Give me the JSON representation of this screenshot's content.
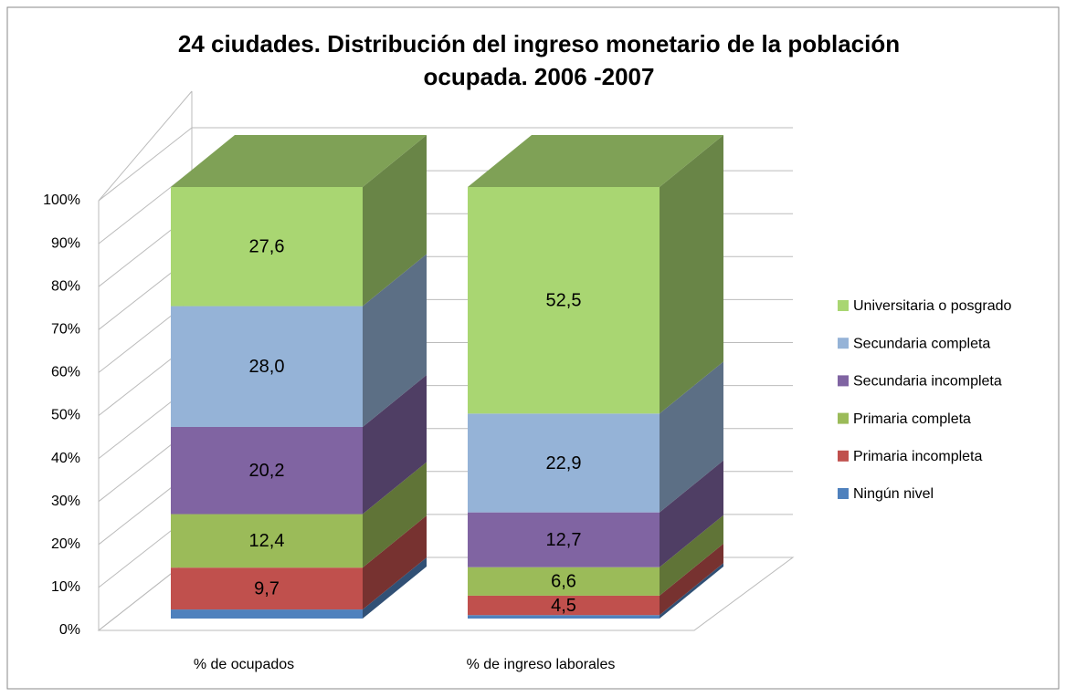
{
  "chart_data": {
    "type": "stacked-bar-3d",
    "title": "24 ciudades. Distribución del ingreso monetario de la población ocupada. 2006 -2007",
    "categories": [
      "% de ocupados",
      "% de ingreso laborales"
    ],
    "series": [
      {
        "name": "Ningún nivel",
        "color": "#4f81bd",
        "values": [
          2.1,
          0.8
        ]
      },
      {
        "name": "Primaria incompleta",
        "color": "#c0504d",
        "values": [
          9.7,
          4.5
        ],
        "value_labels": [
          "9,7",
          "4,5"
        ]
      },
      {
        "name": "Primaria completa",
        "color": "#9bbb59",
        "values": [
          12.4,
          6.6
        ],
        "value_labels": [
          "12,4",
          "6,6"
        ]
      },
      {
        "name": "Secundaria incompleta",
        "color": "#8064a2",
        "values": [
          20.2,
          12.7
        ],
        "value_labels": [
          "20,2",
          "12,7"
        ]
      },
      {
        "name": "Secundaria completa",
        "color": "#95b3d7",
        "values": [
          28.0,
          22.9
        ],
        "value_labels": [
          "28,0",
          "22,9"
        ]
      },
      {
        "name": "Universitaria o posgrado",
        "color": "#a9d672",
        "values": [
          27.6,
          52.5
        ],
        "value_labels": [
          "27,6",
          "52,5"
        ]
      }
    ],
    "ylim": [
      0,
      100
    ],
    "yticks": [
      {
        "value": 0,
        "label": "0%"
      },
      {
        "value": 10,
        "label": "10%"
      },
      {
        "value": 20,
        "label": "20%"
      },
      {
        "value": 30,
        "label": "30%"
      },
      {
        "value": 40,
        "label": "40%"
      },
      {
        "value": 50,
        "label": "50%"
      },
      {
        "value": 60,
        "label": "60%"
      },
      {
        "value": 70,
        "label": "70%"
      },
      {
        "value": 80,
        "label": "80%"
      },
      {
        "value": 90,
        "label": "90%"
      },
      {
        "value": 100,
        "label": "100%"
      }
    ],
    "grid": true,
    "legend": "right"
  }
}
